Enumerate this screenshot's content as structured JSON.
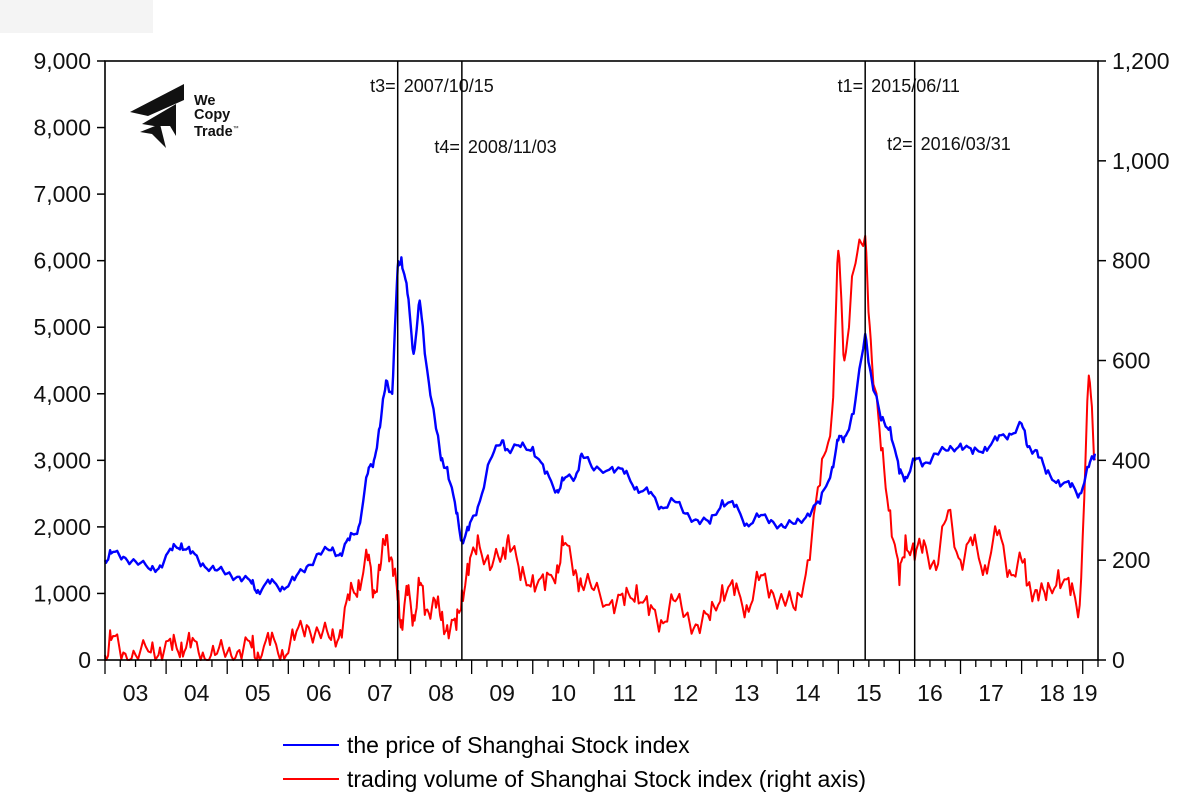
{
  "logo": {
    "line1": "We",
    "line2": "Copy",
    "line3": "Trade",
    "tm": "™"
  },
  "legend": {
    "items": [
      {
        "label": "the price of Shanghai Stock index",
        "color": "#0000ff"
      },
      {
        "label": "trading volume of Shanghai Stock index (right axis)",
        "color": "#ff0000"
      }
    ]
  },
  "annotations": [
    {
      "label": "t3=",
      "date": "2007/10/15"
    },
    {
      "label": "t4=",
      "date": "2008/11/03"
    },
    {
      "label": "t1=",
      "date": "2015/06/11"
    },
    {
      "label": "t2=",
      "date": "2016/03/31"
    }
  ],
  "colors": {
    "price": "#0000ff",
    "volume": "#ff0000",
    "axis": "#000000",
    "background": "#ffffff"
  },
  "chart_data": {
    "type": "line",
    "title": "",
    "xlabel": "",
    "ylabel": "",
    "ylabel_right": "",
    "x_tick_labels": [
      "03",
      "04",
      "05",
      "06",
      "07",
      "08",
      "09",
      "10",
      "11",
      "12",
      "13",
      "14",
      "15",
      "16",
      "17",
      "18",
      "19"
    ],
    "y_left_ticks": [
      "0",
      "1,000",
      "2,000",
      "3,000",
      "4,000",
      "5,000",
      "6,000",
      "7,000",
      "8,000",
      "9,000"
    ],
    "y_right_ticks": [
      "0",
      "200",
      "400",
      "600",
      "800",
      "1,000",
      "1,200"
    ],
    "ylim_left": [
      0,
      9000
    ],
    "ylim_right": [
      0,
      1200
    ],
    "xlim": [
      2003.0,
      2019.25
    ],
    "grid": false,
    "legend_position": "bottom",
    "vertical_lines": [
      {
        "name": "t3",
        "date": "2007/10/15",
        "x": 2007.79
      },
      {
        "name": "t4",
        "date": "2008/11/03",
        "x": 2008.84
      },
      {
        "name": "t1",
        "date": "2015/06/11",
        "x": 2015.44
      },
      {
        "name": "t2",
        "date": "2016/03/31",
        "x": 2016.25
      }
    ],
    "series": [
      {
        "name": "the price of Shanghai Stock index",
        "axis": "left",
        "color": "#0000ff",
        "x": [
          2003.0,
          2003.1,
          2003.3,
          2003.5,
          2003.75,
          2003.9,
          2004.1,
          2004.25,
          2004.4,
          2004.6,
          2004.8,
          2005.0,
          2005.2,
          2005.4,
          2005.5,
          2005.7,
          2005.9,
          2006.1,
          2006.3,
          2006.5,
          2006.7,
          2006.85,
          2007.0,
          2007.15,
          2007.3,
          2007.4,
          2007.5,
          2007.6,
          2007.7,
          2007.79,
          2007.85,
          2007.95,
          2008.05,
          2008.15,
          2008.25,
          2008.4,
          2008.5,
          2008.6,
          2008.75,
          2008.84,
          2008.95,
          2009.1,
          2009.3,
          2009.5,
          2009.6,
          2009.8,
          2010.0,
          2010.2,
          2010.4,
          2010.5,
          2010.7,
          2010.8,
          2011.0,
          2011.3,
          2011.5,
          2011.7,
          2011.9,
          2012.1,
          2012.3,
          2012.5,
          2012.7,
          2012.9,
          2013.1,
          2013.3,
          2013.5,
          2013.7,
          2013.9,
          2014.1,
          2014.3,
          2014.5,
          2014.7,
          2014.9,
          2015.0,
          2015.1,
          2015.25,
          2015.44,
          2015.55,
          2015.7,
          2015.85,
          2016.0,
          2016.1,
          2016.25,
          2016.4,
          2016.6,
          2016.8,
          2017.0,
          2017.2,
          2017.4,
          2017.6,
          2017.8,
          2018.0,
          2018.1,
          2018.25,
          2018.4,
          2018.6,
          2018.8,
          2018.95,
          2019.1,
          2019.2
        ],
        "values": [
          1500,
          1600,
          1550,
          1480,
          1350,
          1420,
          1650,
          1750,
          1600,
          1450,
          1350,
          1300,
          1250,
          1150,
          1050,
          1150,
          1100,
          1200,
          1400,
          1600,
          1650,
          1600,
          1800,
          2000,
          2800,
          3000,
          3500,
          4200,
          4000,
          5900,
          6050,
          5500,
          4600,
          5400,
          4500,
          3600,
          3000,
          2900,
          2200,
          1800,
          1950,
          2300,
          3000,
          3300,
          3150,
          3200,
          3200,
          2800,
          2550,
          2700,
          2750,
          3100,
          2850,
          2900,
          2800,
          2600,
          2500,
          2300,
          2400,
          2200,
          2100,
          2050,
          2400,
          2300,
          2050,
          2150,
          2100,
          2000,
          2050,
          2200,
          2350,
          2900,
          3300,
          3350,
          3700,
          4900,
          4200,
          3600,
          3500,
          2800,
          2750,
          3000,
          2950,
          3100,
          3150,
          3250,
          3100,
          3200,
          3300,
          3400,
          3550,
          3200,
          3150,
          2800,
          2700,
          2600,
          2500,
          2900,
          3100
        ]
      },
      {
        "name": "trading volume of Shanghai Stock index (right axis)",
        "axis": "right",
        "color": "#ff0000",
        "x": [
          2003.0,
          2003.1,
          2003.3,
          2003.5,
          2003.75,
          2003.9,
          2004.1,
          2004.25,
          2004.4,
          2004.6,
          2004.8,
          2005.0,
          2005.2,
          2005.4,
          2005.5,
          2005.7,
          2005.9,
          2006.1,
          2006.3,
          2006.5,
          2006.7,
          2006.85,
          2007.0,
          2007.15,
          2007.3,
          2007.4,
          2007.5,
          2007.6,
          2007.7,
          2007.79,
          2007.85,
          2007.95,
          2008.05,
          2008.15,
          2008.25,
          2008.4,
          2008.5,
          2008.6,
          2008.75,
          2008.84,
          2008.95,
          2009.1,
          2009.3,
          2009.5,
          2009.6,
          2009.8,
          2010.0,
          2010.2,
          2010.4,
          2010.5,
          2010.7,
          2010.8,
          2011.0,
          2011.3,
          2011.5,
          2011.7,
          2011.9,
          2012.1,
          2012.3,
          2012.5,
          2012.7,
          2012.9,
          2013.1,
          2013.3,
          2013.5,
          2013.7,
          2013.9,
          2014.1,
          2014.3,
          2014.5,
          2014.7,
          2014.9,
          2015.0,
          2015.1,
          2015.25,
          2015.44,
          2015.55,
          2015.7,
          2015.85,
          2016.0,
          2016.1,
          2016.25,
          2016.4,
          2016.6,
          2016.8,
          2017.0,
          2017.2,
          2017.4,
          2017.6,
          2017.8,
          2018.0,
          2018.1,
          2018.25,
          2018.4,
          2018.6,
          2018.8,
          2018.95,
          2019.1,
          2019.2
        ],
        "values": [
          10,
          40,
          15,
          10,
          15,
          25,
          20,
          35,
          25,
          15,
          10,
          15,
          20,
          25,
          15,
          30,
          20,
          40,
          70,
          55,
          40,
          60,
          120,
          160,
          200,
          140,
          180,
          250,
          200,
          120,
          80,
          130,
          90,
          150,
          100,
          120,
          80,
          70,
          60,
          140,
          170,
          250,
          180,
          210,
          250,
          160,
          170,
          140,
          190,
          230,
          180,
          150,
          140,
          120,
          110,
          150,
          90,
          80,
          120,
          90,
          70,
          80,
          150,
          130,
          110,
          160,
          140,
          120,
          100,
          200,
          350,
          500,
          820,
          600,
          780,
          850,
          600,
          420,
          300,
          150,
          250,
          200,
          240,
          180,
          300,
          200,
          230,
          190,
          250,
          180,
          200,
          150,
          140,
          120,
          180,
          130,
          110,
          570,
          400
        ]
      }
    ]
  }
}
